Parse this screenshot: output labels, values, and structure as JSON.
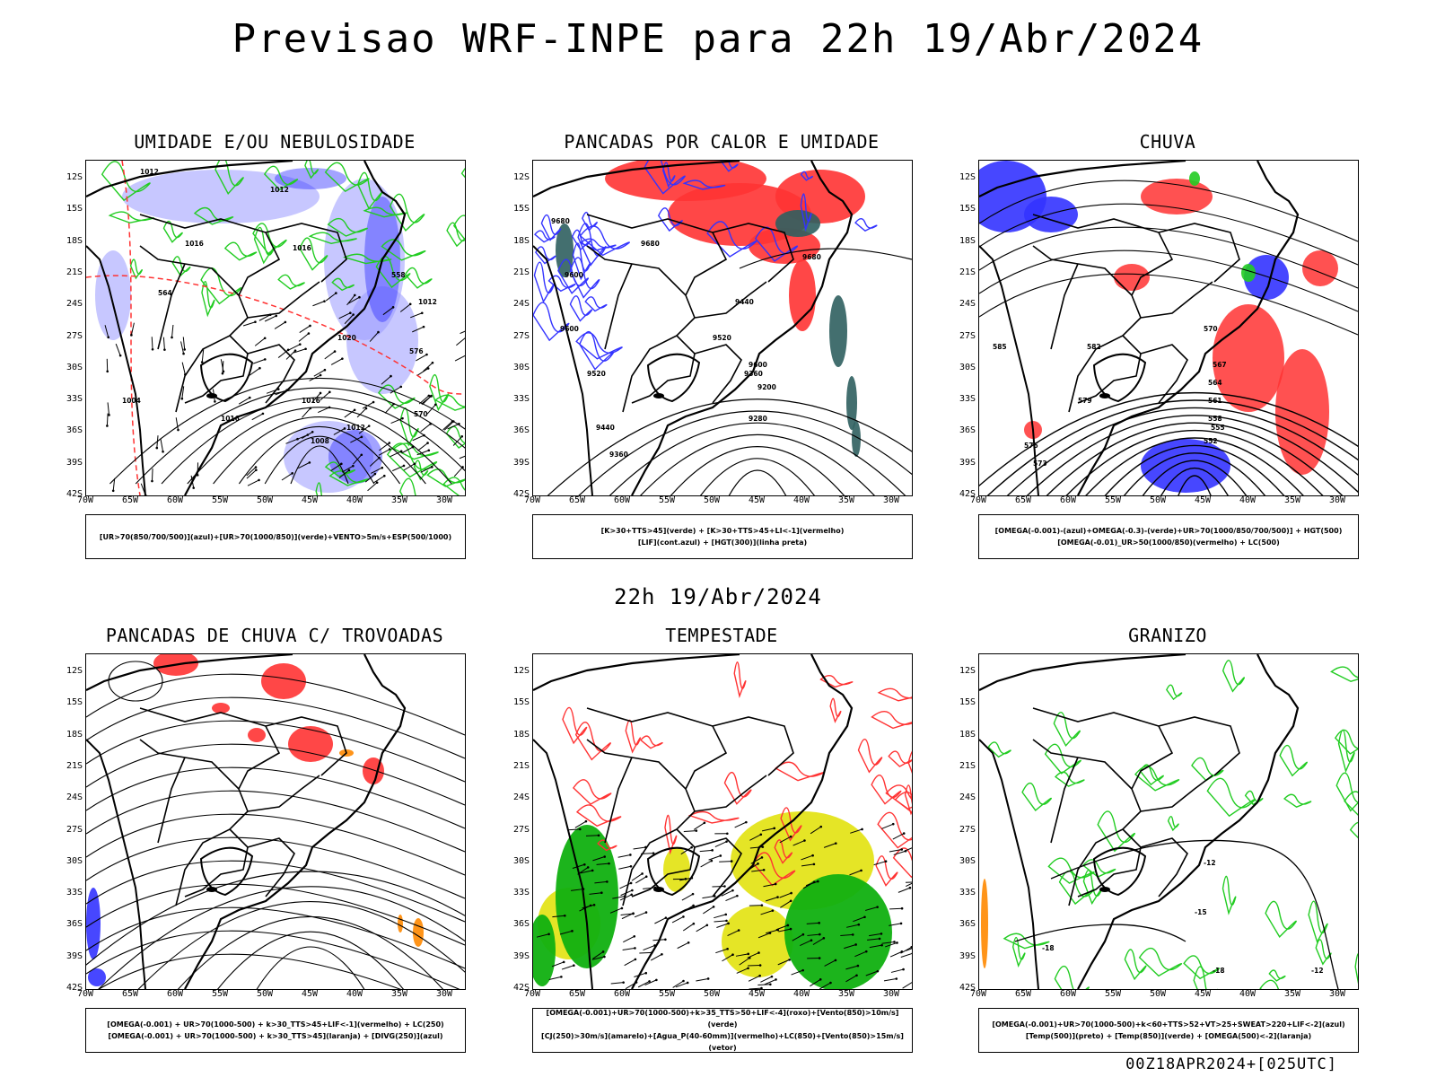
{
  "title": "Previsao WRF-INPE  para 22h 19/Abr/2024",
  "subtitle": "22h 19/Abr/2024",
  "footer": "00Z18APR2024+[025UTC]",
  "lat_labels": [
    "12S",
    "15S",
    "18S",
    "21S",
    "24S",
    "27S",
    "30S",
    "33S",
    "36S",
    "39S",
    "42S"
  ],
  "lon_labels": [
    "70W",
    "65W",
    "60W",
    "55W",
    "50W",
    "45W",
    "40W",
    "35W",
    "30W"
  ],
  "colors": {
    "blue": "#3333ff",
    "lightblue": "#9999ff",
    "green": "#22cc22",
    "red": "#ff3333",
    "yellow": "#e0e000",
    "teal": "#2f5f5f",
    "orange": "#ff8800"
  },
  "panels": [
    {
      "id": "umidade",
      "title": "UMIDADE E/OU NEBULOSIDADE",
      "legend": [
        "[UR>70(850/700/500)](azul)+[UR>70(1000/850)](verde)+VENTO>5m/s+ESP(500/1000)"
      ],
      "contour_labels": [
        "1012",
        "1012",
        "1016",
        "1016",
        "1020",
        "1016",
        "1012",
        "1008",
        "1004",
        "1016",
        "1012",
        "570",
        "576",
        "558",
        "564"
      ]
    },
    {
      "id": "pancadas_calor",
      "title": "PANCADAS POR CALOR E UMIDADE",
      "legend": [
        "[K>30+TTS>45](verde) + [K>30+TTS>45+LI<-1](vermelho)",
        "[LIF](cont.azul) + [HGT(300)](linha preta)"
      ],
      "contour_labels": [
        "9680",
        "9680",
        "9600",
        "9600",
        "9520",
        "9440",
        "9360",
        "9280",
        "9200",
        "9360",
        "9520",
        "9440",
        "9600",
        "9680"
      ]
    },
    {
      "id": "chuva",
      "title": "CHUVA",
      "legend": [
        "[OMEGA(-0.001)-(azul)+OMEGA(-0.3)-(verde)+UR>70(1000/850/700/500)] + HGT(500)",
        "[OMEGA(-0.01)_UR>50(1000/850)(vermelho) + LC(500)"
      ],
      "contour_labels": [
        "585",
        "582",
        "579",
        "576",
        "573",
        "570",
        "567",
        "564",
        "561",
        "558",
        "555",
        "552"
      ]
    },
    {
      "id": "trovoadas",
      "title": "PANCADAS DE CHUVA C/ TROVOADAS",
      "legend": [
        "[OMEGA(-0.001) + UR>70(1000-500) + k>30_TTS>45+LIF<-1](vermelho) + LC(250)",
        "[OMEGA(-0.001) + UR>70(1000-500) + k>30_TTS>45](laranja) + [DIVG(250)](azul)"
      ],
      "contour_labels": []
    },
    {
      "id": "tempestade",
      "title": "TEMPESTADE",
      "legend": [
        "[OMEGA(-0.001)+UR>70(1000-500)+k>35_TTS>50+LIF<-4](roxo)+[Vento(850)>10m/s](verde)",
        "[CJ(250)>30m/s](amarelo)+[Agua_P(40-60mm)](vermelho)+LC(850)+[Vento(850)>15m/s](vetor)"
      ],
      "contour_labels": []
    },
    {
      "id": "granizo",
      "title": "GRANIZO",
      "legend": [
        "[OMEGA(-0.001)+UR>70(1000-500)+k<60+TTS>52+VT>25+SWEAT>220+LIF<-2](azul)",
        "[Temp(500)](preto) + [Temp(850)](verde) + [OMEGA(500)<-2](laranja)"
      ],
      "contour_labels": [
        "-12",
        "-15",
        "-18",
        "-12",
        "-18"
      ]
    }
  ]
}
